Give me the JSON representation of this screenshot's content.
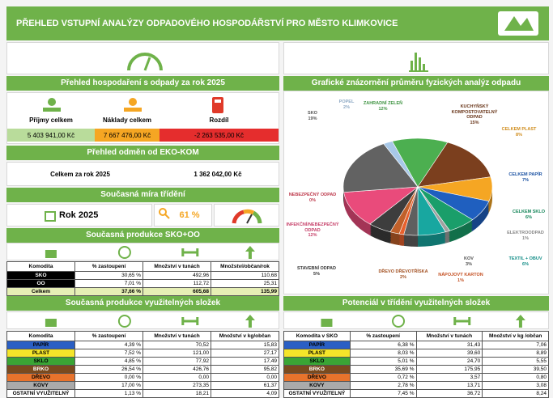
{
  "header": {
    "title": "PŘEHLED VSTUPNÍ ANALÝZY ODPADOVÉHO HOSPODÁŘSTVÍ PRO MĚSTO KLIMKOVICE"
  },
  "finance": {
    "title": "Přehled hospodaření s odpady za rok 2025",
    "columns": [
      "Příjmy celkem",
      "Náklady celkem",
      "Rozdíl"
    ],
    "values": [
      "5 403 941,00 Kč",
      "7 667 476,00 Kč",
      "-2 263 535,00 Kč"
    ]
  },
  "ekokom": {
    "title": "Přehled odměn od EKO-KOM",
    "label": "Celkem za rok 2025",
    "value": "1 362 042,00 Kč"
  },
  "sorting": {
    "title": "Současná míra třídění",
    "year": "Rok 2025",
    "rate": "61 %"
  },
  "production": {
    "title": "Současná produkce SKO+OO",
    "table": {
      "header": [
        "Komodita",
        "% zastoupení",
        "Množství v tunách",
        "Množství/občan/rok"
      ],
      "rows": [
        [
          "SKO",
          "30,65 %",
          "492,96",
          "110,68"
        ],
        [
          "OO",
          "7,01 %",
          "112,72",
          "25,31"
        ],
        [
          "Celkem",
          "37,66 %",
          "605,68",
          "135,99"
        ]
      ]
    }
  },
  "recyclables": {
    "title": "Současná produkce využitelných složek",
    "table": {
      "header": [
        "Komodita",
        "% zastoupení",
        "Množství v tunách",
        "Množství v kg/občan"
      ],
      "rows": [
        [
          "PAPÍR",
          "4,39 %",
          "70,52",
          "15,83"
        ],
        [
          "PLAST",
          "7,52 %",
          "121,00",
          "27,17"
        ],
        [
          "SKLO",
          "4,85 %",
          "77,92",
          "17,49"
        ],
        [
          "BRKO",
          "26,54 %",
          "426,76",
          "95,82"
        ],
        [
          "DŘEVO",
          "0,00 %",
          "0,00",
          "0,00"
        ],
        [
          "KOVY",
          "17,00 %",
          "273,35",
          "61,37"
        ],
        [
          "OSTATNÍ VYUŽITELNÝ",
          "1,13 %",
          "18,21",
          "4,09"
        ]
      ]
    }
  },
  "potential": {
    "title": "Potenciál v třídění využitelných složek",
    "table": {
      "header": [
        "Komodita v SKO",
        "% zastoupení",
        "Množství v tunách",
        "Množství v kg /občan"
      ],
      "rows": [
        [
          "PAPÍR",
          "6,38 %",
          "31,43",
          "7,06"
        ],
        [
          "PLAST",
          "8,03 %",
          "39,60",
          "8,89"
        ],
        [
          "SKLO",
          "5,01 %",
          "24,70",
          "5,55"
        ],
        [
          "BRKO",
          "35,69 %",
          "175,95",
          "39,50"
        ],
        [
          "DŘEVO",
          "0,72 %",
          "3,57",
          "0,80"
        ],
        [
          "KOVY",
          "2,78 %",
          "13,71",
          "3,08"
        ],
        [
          "OSTATNÍ VYUŽITELNÝ",
          "7,45 %",
          "36,72",
          "8,24"
        ]
      ]
    }
  },
  "chart_data": {
    "type": "pie",
    "title": "Grafické znázornění průměru fyzických analýz odpadu",
    "categories": [
      "ZAHRADNÍ ZELEŇ",
      "KUCHYŇSKÝ KOMPOSTOVATELNÝ ODPAD",
      "CELKEM PLAST",
      "CELKEM PAPÍR",
      "CELKEM SKLO",
      "ELEKTROODPAD",
      "TEXTIL + OBUV",
      "KOV",
      "NÁPOJOVÝ KARTON",
      "DŘEVO DŘEVOTŘÍSKA",
      "STAVEBNÍ ODPAD",
      "INFEKČNÍ/NEBEZPEČNÝ ODPAD",
      "NEBEZPEČNÝ ODPAD",
      "SKO",
      "POPEL"
    ],
    "values": [
      12,
      15,
      8,
      7,
      6,
      1,
      6,
      3,
      1,
      2,
      5,
      12,
      0,
      19,
      2
    ],
    "value_labels": [
      "12%",
      "15%",
      "8%",
      "7%",
      "6%",
      "1%",
      "6%",
      "3%",
      "1%",
      "2%",
      "5%",
      "12%",
      "0%",
      "19%",
      "2%"
    ],
    "colors": [
      "#4caf50",
      "#7b3f1e",
      "#f5a623",
      "#1f5fbf",
      "#1a9e6a",
      "#a0a0a0",
      "#18a7a0",
      "#5f5f5f",
      "#e8602c",
      "#c0602a",
      "#3d3d3d",
      "#e94b7b",
      "#e0455a",
      "#626262",
      "#a8c8e8"
    ]
  }
}
